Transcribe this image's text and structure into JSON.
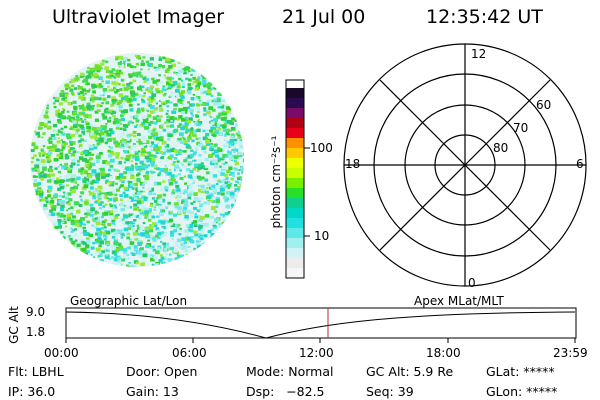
{
  "header": {
    "instrument": "Ultraviolet Imager",
    "date": "21 Jul 00",
    "time": "12:35:42 UT"
  },
  "colorbar": {
    "label": "photon cm⁻²s⁻¹",
    "ticks": [
      "100",
      "10"
    ]
  },
  "polar_plot": {
    "mlt_labels": {
      "top": "12",
      "left": "18",
      "right": "6",
      "bottom": "0"
    },
    "lat_labels": [
      "60",
      "70",
      "80"
    ]
  },
  "altitude_plot": {
    "ylabel": "GC Alt",
    "y_ticks": [
      "9.0",
      "1.8"
    ],
    "left_title": "Geographic Lat/Lon",
    "right_title": "Apex MLat/MLT",
    "x_ticks": [
      "00:00",
      "06:00",
      "12:00",
      "18:00",
      "23:59"
    ]
  },
  "info": {
    "flt": "Flt: LBHL",
    "ip": "IP: 36.0",
    "door": "Door: Open",
    "gain": "Gain: 13",
    "mode": "Mode: Normal",
    "dsp": "Dsp:   −82.5",
    "gcalt": "GC Alt: 5.9 Re",
    "seq": "Seq: 39",
    "glat": "GLat: *****",
    "glon": "GLon: *****"
  }
}
